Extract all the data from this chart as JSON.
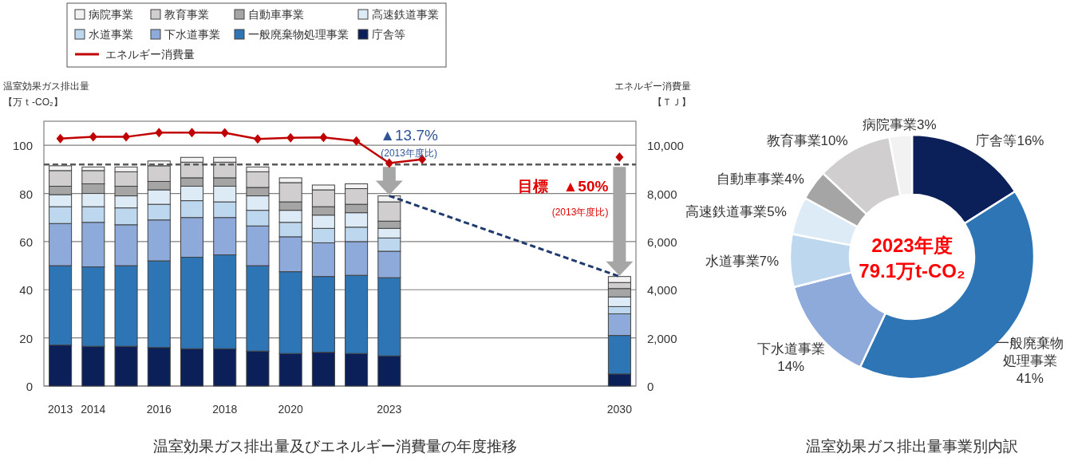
{
  "chart_data": [
    {
      "type": "bar",
      "stacked": true,
      "title": "温室効果ガス排出量及びエネルギー消費量の年度推移",
      "ylabel": "温室効果ガス排出量【万ｔ-CO₂】",
      "y2label": "エネルギー消費量【ＴＪ】",
      "categories": [
        "2013",
        "2014",
        null,
        "2016",
        null,
        "2018",
        null,
        "2020",
        null,
        null,
        "2023",
        null,
        null,
        null,
        null,
        null,
        null,
        "2030"
      ],
      "series": [
        {
          "name": "庁舎等",
          "color": "#0b1f58",
          "values": [
            17,
            16.5,
            16.5,
            16,
            15.5,
            15.5,
            14.5,
            13.5,
            14,
            13.5,
            12.5,
            null,
            null,
            null,
            null,
            null,
            null,
            5
          ]
        },
        {
          "name": "一般廃棄物処理事業",
          "color": "#2e75b6",
          "values": [
            33,
            33,
            33.5,
            36,
            38,
            39,
            35.5,
            34,
            31.5,
            32.5,
            32.5,
            null,
            null,
            null,
            null,
            null,
            null,
            16
          ]
        },
        {
          "name": "下水道事業",
          "color": "#8eaadb",
          "values": [
            17.5,
            18.5,
            17,
            17,
            16.5,
            15.5,
            16.5,
            14.5,
            14,
            14,
            11,
            null,
            null,
            null,
            null,
            null,
            null,
            9
          ]
        },
        {
          "name": "水道事業",
          "color": "#bdd7ee",
          "values": [
            7,
            6.5,
            7,
            6.5,
            7,
            6.5,
            6.5,
            6,
            6,
            6,
            5.5,
            null,
            null,
            null,
            null,
            null,
            null,
            3
          ]
        },
        {
          "name": "高速鉄道事業",
          "color": "#ddebf7",
          "values": [
            5,
            5.5,
            5,
            6,
            6,
            6.5,
            6,
            5,
            5.5,
            6,
            4,
            null,
            null,
            null,
            null,
            null,
            null,
            4
          ]
        },
        {
          "name": "自動車事業",
          "color": "#a5a5a5",
          "values": [
            3.5,
            4,
            4,
            3.5,
            3.5,
            3.5,
            3.5,
            3.5,
            3.5,
            3.5,
            3,
            null,
            null,
            null,
            null,
            null,
            null,
            3.5
          ]
        },
        {
          "name": "教育事業",
          "color": "#d0cece",
          "values": [
            6.5,
            5.5,
            6,
            6.5,
            6.5,
            6.5,
            6.5,
            8,
            7,
            6.5,
            8,
            null,
            null,
            null,
            null,
            null,
            null,
            2.5
          ]
        },
        {
          "name": "病院事業",
          "color": "#f2f2f2",
          "values": [
            2,
            1.5,
            2,
            2,
            2,
            2,
            2,
            2,
            2,
            2,
            2.5,
            null,
            null,
            null,
            null,
            null,
            null,
            2.5
          ]
        },
        {
          "name": "エネルギー消費量",
          "type": "line",
          "axis": "y2",
          "color": "#c00000",
          "marker": "diamond",
          "values": [
            10280,
            10350,
            10350,
            10530,
            10530,
            10520,
            10260,
            10310,
            10330,
            10180,
            9260,
            9420,
            null,
            null,
            null,
            null,
            null,
            9510
          ]
        },
        {
          "type": "line",
          "values": [
            null,
            null,
            null,
            null,
            null,
            null,
            null,
            null,
            null,
            null,
            79,
            null,
            null,
            null,
            null,
            null,
            null,
            45.5
          ],
          "color": "#1f3a6e",
          "line_style": "dashed",
          "marker": "none"
        }
      ],
      "ylim": [
        0,
        110
      ],
      "yticks": [
        0,
        20,
        40,
        60,
        80,
        100
      ],
      "y2lim": [
        0,
        11000
      ],
      "y2ticks": [
        0,
        {
          "value": 2000,
          "label": "2,000"
        },
        {
          "value": 4000,
          "label": "4,000"
        },
        {
          "value": 6000,
          "label": "6,000"
        },
        {
          "value": 8000,
          "label": "8,000"
        },
        {
          "value": 10000,
          "label": "10,000"
        }
      ],
      "grid": "y",
      "legend": "top left",
      "ref_lines": [
        {
          "axis": "y",
          "value": 92,
          "color": "#595959",
          "line_style": "dashed"
        }
      ],
      "annotations": [
        "▲13.7%",
        "(2013年度比)",
        "目標　▲50%",
        "(2013年度比)"
      ]
    },
    {
      "type": "donut",
      "title": "温室効果ガス排出量事業別内訳",
      "categories": [
        "庁舎等",
        "一般廃棄物処理事業",
        "下水道事業",
        "水道事業",
        "高速鉄道事業",
        "自動車事業",
        "教育事業",
        "病院事業"
      ],
      "values": [
        16,
        41,
        14,
        7,
        5,
        4,
        10,
        3
      ],
      "value_labels": [
        "16%",
        "41%",
        "14%",
        "7%",
        "5%",
        "4%",
        "10%",
        "3%"
      ],
      "colors": [
        "#0b1f58",
        "#2e75b6",
        "#8eaadb",
        "#bdd7ee",
        "#ddebf7",
        "#a5a5a5",
        "#d0cece",
        "#f2f2f2"
      ],
      "annotations": [
        "2023年度",
        "79.1万t-CO₂"
      ]
    }
  ]
}
